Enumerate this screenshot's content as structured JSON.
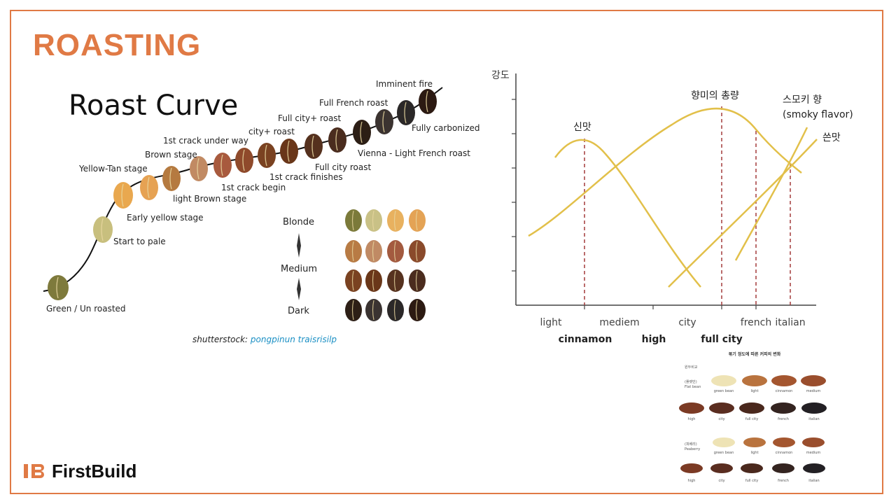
{
  "slide": {
    "title": "ROASTING",
    "accent_color": "#e07a45",
    "logo_text": "FirstBuild"
  },
  "roast_curve": {
    "title": "Roast Curve",
    "stages": [
      "Green / Un roasted",
      "Start to pale",
      "Early yellow stage",
      "Yellow-Tan stage",
      "light Brown stage",
      "Brown stage",
      "1st crack under way",
      "1st crack begin",
      "city+ roast",
      "1st crack finishes",
      "Full city+ roast",
      "Full city roast",
      "Full French roast",
      "Vienna - Light French roast",
      "Imminent fire",
      "Fully carbonized"
    ],
    "scale": {
      "top": "Blonde",
      "middle": "Medium",
      "bottom": "Dark"
    },
    "credit_prefix": "shutterstock: ",
    "credit_author": "pongpinun traisrisilp"
  },
  "flavor_chart": {
    "y_label": "강도",
    "curves": {
      "acidity": "신맛",
      "aroma": "향미의 총량",
      "smoky": "스모키 향",
      "smoky_en": "(smoky flavor)",
      "bitter": "쓴맛"
    },
    "roast_levels_top": [
      "light",
      "mediem",
      "city",
      "french",
      "italian"
    ],
    "roast_levels_bottom": [
      "cinnamon",
      "high",
      "full city"
    ]
  },
  "bean_samples": {
    "title": "볶기 정도에 따른 커피의 변화",
    "group1_header": "원두비교",
    "group1_name_ko": "(플랫빈)",
    "group1_name_en": "Flat bean",
    "group2_name_ko": "(피베리)",
    "group2_name_en": "Peaberry",
    "row1": [
      "green bean",
      "light",
      "cinnamon",
      "medium"
    ],
    "row2": [
      "high",
      "city",
      "full city",
      "french",
      "italian"
    ]
  }
}
